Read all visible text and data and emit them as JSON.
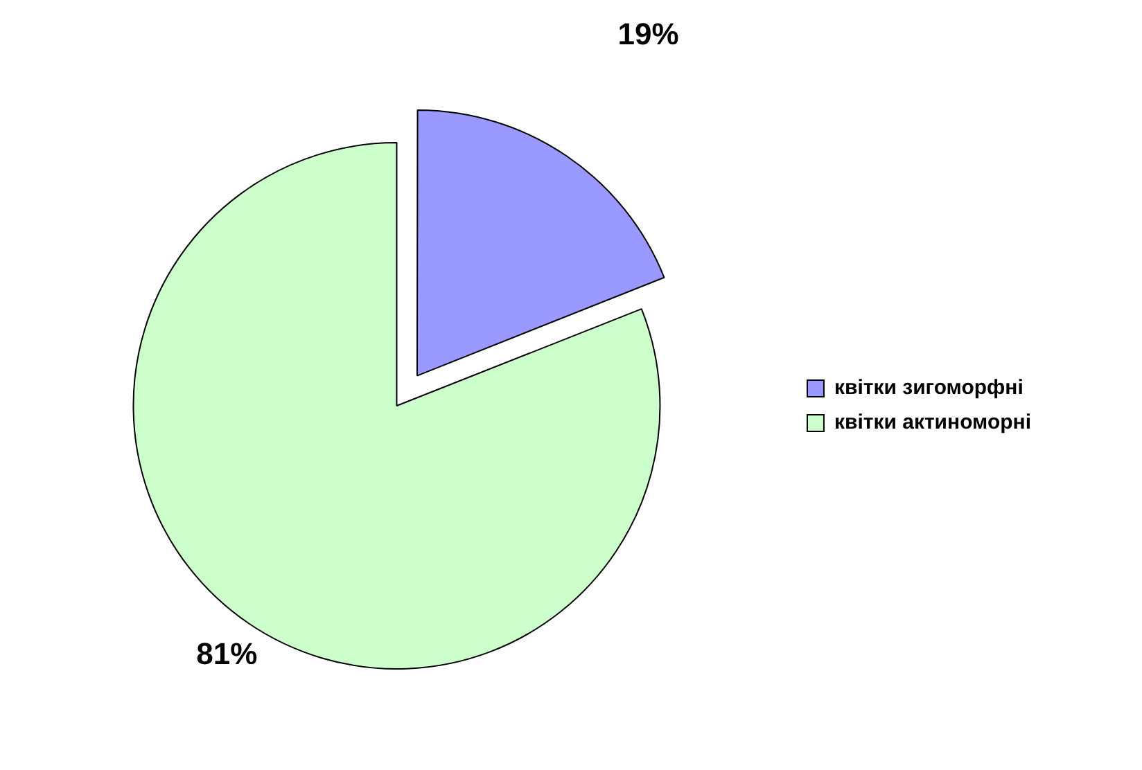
{
  "chart_data": {
    "type": "pie",
    "categories": [
      "квітки зигоморфні",
      "квітки актиноморні"
    ],
    "values": [
      19,
      81
    ],
    "colors": [
      "#9999ff",
      "#ccffcc"
    ],
    "value_labels": [
      "19%",
      "81%"
    ],
    "legend": "right"
  }
}
